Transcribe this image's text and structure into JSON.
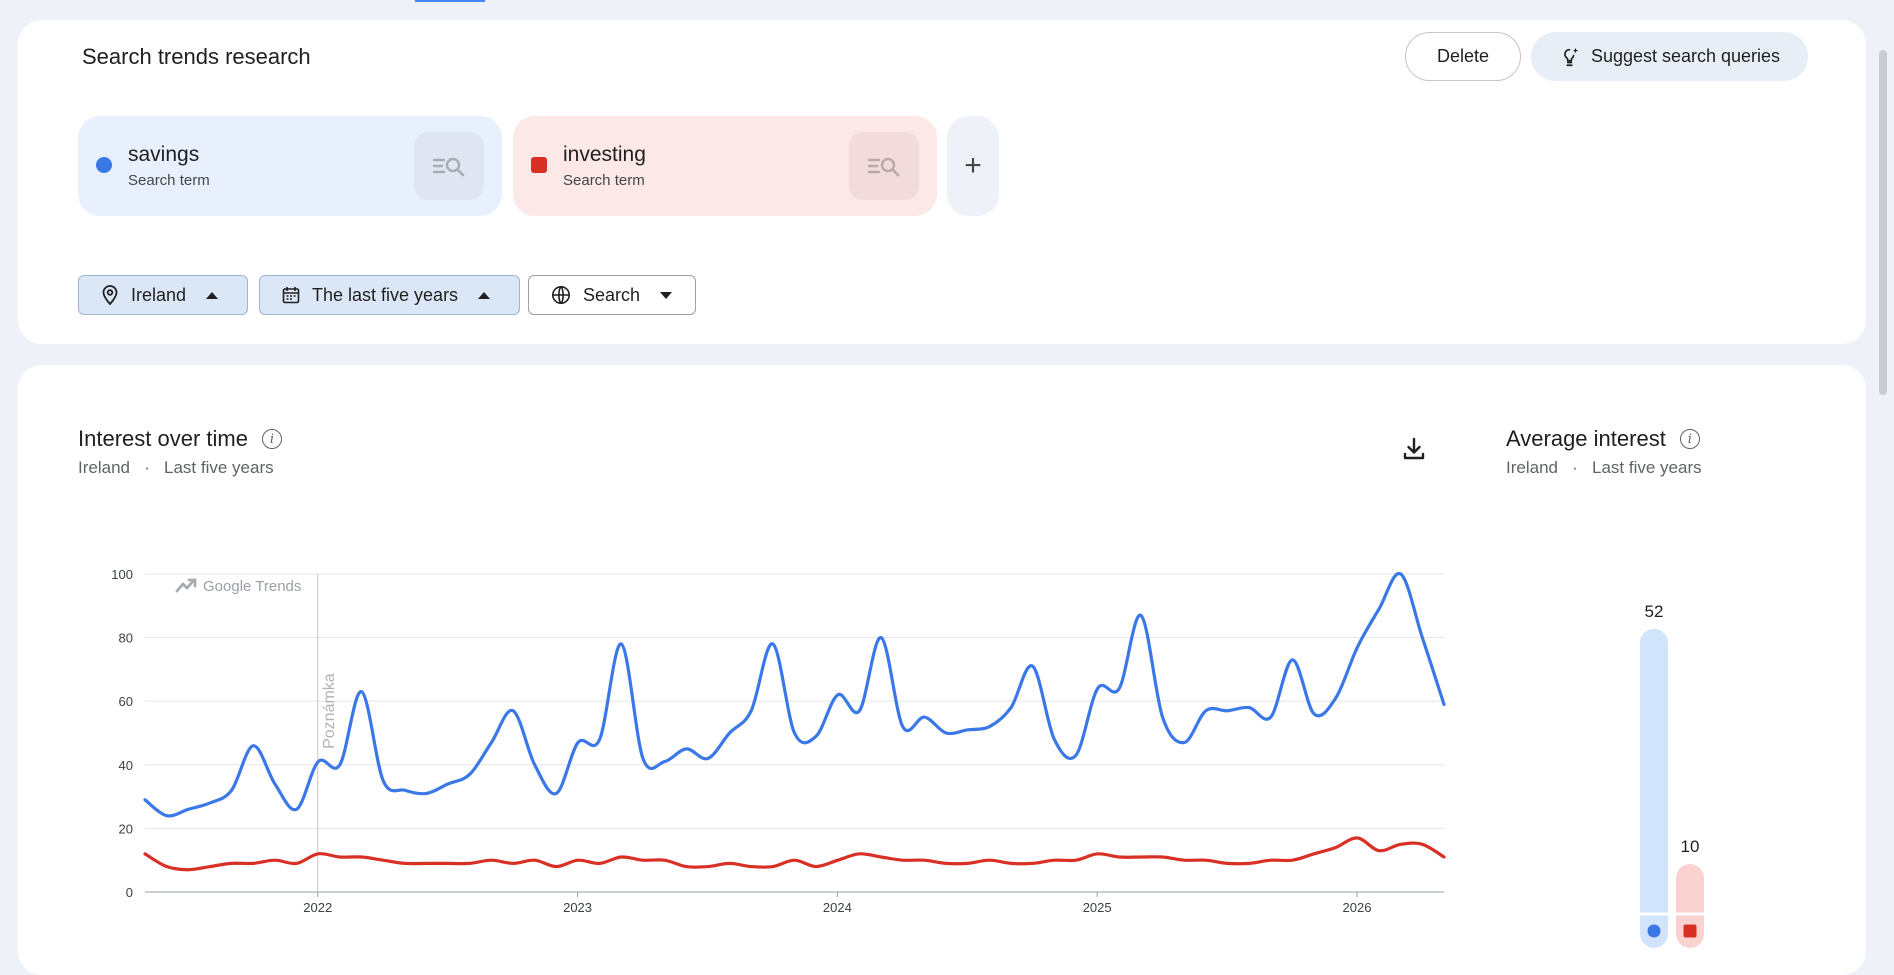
{
  "header": {
    "title": "Search trends research",
    "delete_label": "Delete",
    "suggest_label": "Suggest search queries"
  },
  "terms": [
    {
      "name": "savings",
      "type": "Search term",
      "color": "#3b78e7"
    },
    {
      "name": "investing",
      "type": "Search term",
      "color": "#d93025"
    }
  ],
  "filters": {
    "location": "Ireland",
    "time_range": "The last five years",
    "property": "Search"
  },
  "interest_over_time": {
    "title": "Interest over time",
    "subtitle_location": "Ireland",
    "subtitle_separator": "·",
    "subtitle_range": "Last five years",
    "watermark": "Google Trends",
    "annotation": "Poznámka"
  },
  "average_interest": {
    "title": "Average interest",
    "subtitle_location": "Ireland",
    "subtitle_separator": "·",
    "subtitle_range": "Last five years"
  },
  "chart_data": [
    {
      "type": "line",
      "title": "Interest over time",
      "ylim": [
        0,
        100
      ],
      "yticks": [
        0,
        20,
        40,
        60,
        80,
        100
      ],
      "xticks": [
        {
          "label": "2022",
          "x": 0.665
        },
        {
          "label": "2023",
          "x": 1.665
        },
        {
          "label": "2024",
          "x": 2.665
        },
        {
          "label": "2025",
          "x": 3.665
        },
        {
          "label": "2026",
          "x": 4.665
        }
      ],
      "xlim": [
        0,
        5.0
      ],
      "grid": true,
      "series": [
        {
          "name": "savings",
          "color": "#3b78e7",
          "values": [
            29,
            24,
            26,
            28,
            32,
            46,
            34,
            26,
            41,
            40,
            63,
            35,
            32,
            31,
            34,
            37,
            47,
            57,
            40,
            31,
            47,
            48,
            78,
            42,
            41,
            45,
            42,
            50,
            57,
            78,
            50,
            49,
            62,
            57,
            80,
            52,
            55,
            50,
            51,
            52,
            58,
            71,
            48,
            43,
            64,
            64,
            87,
            55,
            47,
            57,
            57,
            58,
            55,
            73,
            56,
            61,
            77,
            89,
            100,
            80,
            59
          ]
        },
        {
          "name": "investing",
          "color": "#d93025",
          "values": [
            12,
            8,
            7,
            8,
            9,
            9,
            10,
            9,
            12,
            11,
            11,
            10,
            9,
            9,
            9,
            9,
            10,
            9,
            10,
            8,
            10,
            9,
            11,
            10,
            10,
            8,
            8,
            9,
            8,
            8,
            10,
            8,
            10,
            12,
            11,
            10,
            10,
            9,
            9,
            10,
            9,
            9,
            10,
            10,
            12,
            11,
            11,
            11,
            10,
            10,
            9,
            9,
            10,
            10,
            12,
            14,
            17,
            13,
            15,
            15,
            11
          ]
        }
      ]
    },
    {
      "type": "bar",
      "title": "Average interest",
      "categories": [
        "savings",
        "investing"
      ],
      "values": [
        52,
        10
      ],
      "colors": [
        "#3b78e7",
        "#d93025"
      ]
    }
  ]
}
